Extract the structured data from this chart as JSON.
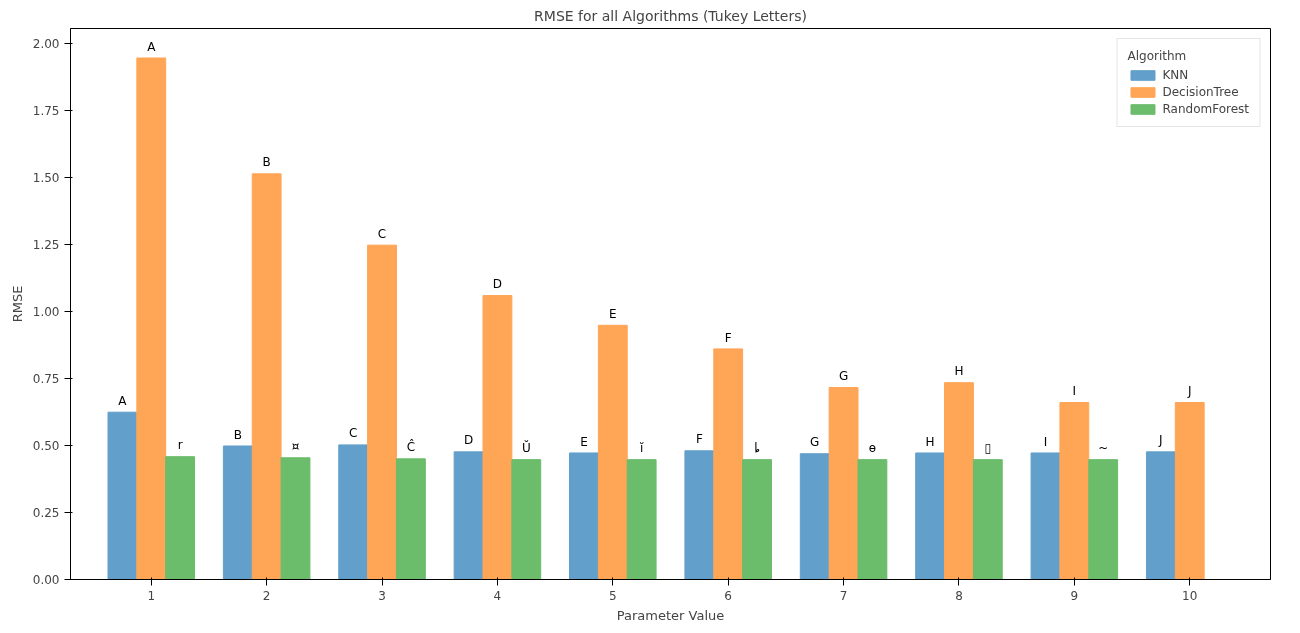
{
  "chart_data": {
    "type": "bar",
    "title": "RMSE for all Algorithms (Tukey Letters)",
    "xlabel": "Parameter Value",
    "ylabel": "RMSE",
    "legend_title": "Algorithm",
    "legend": "top right",
    "grid": false,
    "categories": [
      "1",
      "2",
      "3",
      "4",
      "5",
      "6",
      "7",
      "8",
      "9",
      "10"
    ],
    "ylim": [
      0,
      2.055
    ],
    "yticks": [
      {
        "value": 0,
        "label": "0.00"
      },
      {
        "value": 0.25,
        "label": "0.25"
      },
      {
        "value": 0.5,
        "label": "0.50"
      },
      {
        "value": 0.75,
        "label": "0.75"
      },
      {
        "value": 1,
        "label": "1.00"
      },
      {
        "value": 1.25,
        "label": "1.25"
      },
      {
        "value": 1.5,
        "label": "1.50"
      },
      {
        "value": 1.75,
        "label": "1.75"
      },
      {
        "value": 2,
        "label": "2.00"
      }
    ],
    "series": [
      {
        "name": "KNN",
        "color": "#629fca",
        "values": [
          0.624,
          0.498,
          0.502,
          0.476,
          0.472,
          0.48,
          0.469,
          0.472,
          0.472,
          0.476
        ],
        "value_labels": [
          "A",
          "B",
          "C",
          "D",
          "E",
          "F",
          "G",
          "H",
          "I",
          "J"
        ]
      },
      {
        "name": "DecisionTree",
        "color": "#ffa556",
        "values": [
          1.945,
          1.513,
          1.247,
          1.059,
          0.948,
          0.86,
          0.716,
          0.734,
          0.66,
          0.66
        ],
        "value_labels": [
          "A",
          "B",
          "C",
          "D",
          "E",
          "F",
          "G",
          "H",
          "I",
          "J"
        ]
      },
      {
        "name": "RandomForest",
        "color": "#6bbc6b",
        "values": [
          0.458,
          0.454,
          0.45,
          0.447,
          0.447,
          0.447,
          0.447,
          0.447,
          0.447,
          null
        ],
        "value_labels": [
          "r",
          "¤",
          "Ĉ",
          "Ŭ",
          "ĭ",
          "ȴ",
          "ɵ",
          "▯",
          "~",
          null
        ]
      }
    ]
  }
}
